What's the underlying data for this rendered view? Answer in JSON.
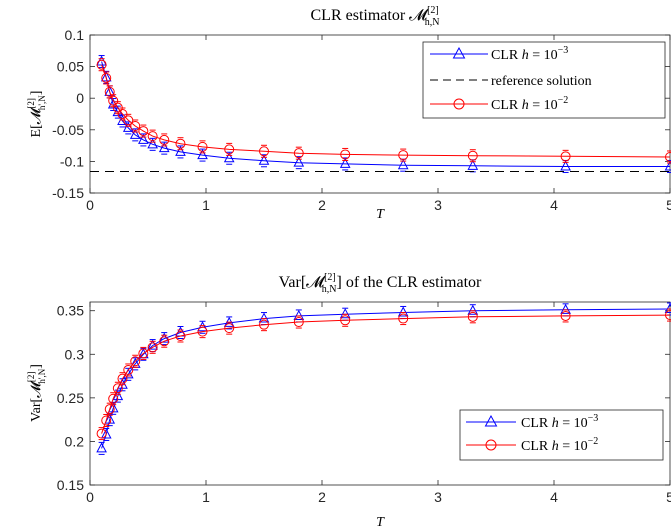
{
  "chart_data": [
    {
      "type": "line",
      "title": "CLR estimator ℳ[2]h,N",
      "xlabel": "T",
      "ylabel": "E[ℳ[2]h',N]",
      "xlim": [
        0,
        5
      ],
      "ylim": [
        -0.15,
        0.1
      ],
      "xticks": [
        "0",
        "1",
        "2",
        "3",
        "4",
        "5"
      ],
      "yticks": [
        "-0.15",
        "-0.1",
        "-0.05",
        "0",
        "0.05",
        "0.1"
      ],
      "legend_position": "top-right",
      "series": [
        {
          "name": "CLR h = 10^-3",
          "color": "#0000ff",
          "marker": "triangle",
          "x": [
            0.1,
            0.14,
            0.17,
            0.2,
            0.24,
            0.28,
            0.33,
            0.39,
            0.46,
            0.54,
            0.64,
            0.78,
            0.97,
            1.2,
            1.5,
            1.8,
            2.2,
            2.7,
            3.3,
            4.1,
            5.0
          ],
          "y": [
            0.058,
            0.033,
            0.01,
            -0.01,
            -0.022,
            -0.036,
            -0.047,
            -0.058,
            -0.066,
            -0.073,
            -0.079,
            -0.085,
            -0.09,
            -0.095,
            -0.099,
            -0.102,
            -0.104,
            -0.106,
            -0.107,
            -0.108,
            -0.108
          ]
        },
        {
          "name": "reference solution",
          "color": "#000000",
          "marker": "none",
          "x": [
            0,
            5
          ],
          "y": [
            -0.116,
            -0.116
          ]
        },
        {
          "name": "CLR h = 10^-2",
          "color": "#ff0000",
          "marker": "circle",
          "x": [
            0.1,
            0.14,
            0.17,
            0.2,
            0.24,
            0.28,
            0.33,
            0.39,
            0.46,
            0.54,
            0.64,
            0.78,
            0.97,
            1.2,
            1.5,
            1.8,
            2.2,
            2.7,
            3.3,
            4.1,
            5.0
          ],
          "y": [
            0.053,
            0.032,
            0.01,
            -0.004,
            -0.015,
            -0.025,
            -0.035,
            -0.044,
            -0.052,
            -0.06,
            -0.066,
            -0.072,
            -0.077,
            -0.081,
            -0.084,
            -0.087,
            -0.089,
            -0.09,
            -0.091,
            -0.092,
            -0.093
          ]
        }
      ]
    },
    {
      "type": "line",
      "title": "Var[ℳ[2]h,N] of the CLR estimator",
      "xlabel": "T",
      "ylabel": "Var[ℳ[2]h',N]",
      "xlim": [
        0,
        5
      ],
      "ylim": [
        0.15,
        0.36
      ],
      "xticks": [
        "0",
        "1",
        "2",
        "3",
        "4",
        "5"
      ],
      "yticks": [
        "0.15",
        "0.2",
        "0.25",
        "0.3",
        "0.35"
      ],
      "legend_position": "bottom-right",
      "series": [
        {
          "name": "CLR h = 10^-3",
          "color": "#0000ff",
          "marker": "triangle",
          "x": [
            0.1,
            0.14,
            0.17,
            0.2,
            0.24,
            0.28,
            0.33,
            0.39,
            0.46,
            0.54,
            0.64,
            0.78,
            0.97,
            1.2,
            1.5,
            1.8,
            2.2,
            2.7,
            3.3,
            4.1,
            5.0
          ],
          "y": [
            0.192,
            0.208,
            0.225,
            0.238,
            0.252,
            0.265,
            0.277,
            0.289,
            0.3,
            0.31,
            0.318,
            0.325,
            0.331,
            0.336,
            0.341,
            0.344,
            0.346,
            0.348,
            0.35,
            0.351,
            0.352
          ]
        },
        {
          "name": "CLR h = 10^-2",
          "color": "#ff0000",
          "marker": "circle",
          "x": [
            0.1,
            0.14,
            0.17,
            0.2,
            0.24,
            0.28,
            0.33,
            0.39,
            0.46,
            0.54,
            0.64,
            0.78,
            0.97,
            1.2,
            1.5,
            1.8,
            2.2,
            2.7,
            3.3,
            4.1,
            5.0
          ],
          "y": [
            0.209,
            0.224,
            0.237,
            0.249,
            0.261,
            0.272,
            0.282,
            0.292,
            0.301,
            0.308,
            0.315,
            0.321,
            0.326,
            0.33,
            0.334,
            0.337,
            0.339,
            0.341,
            0.343,
            0.344,
            0.345
          ]
        }
      ]
    }
  ]
}
